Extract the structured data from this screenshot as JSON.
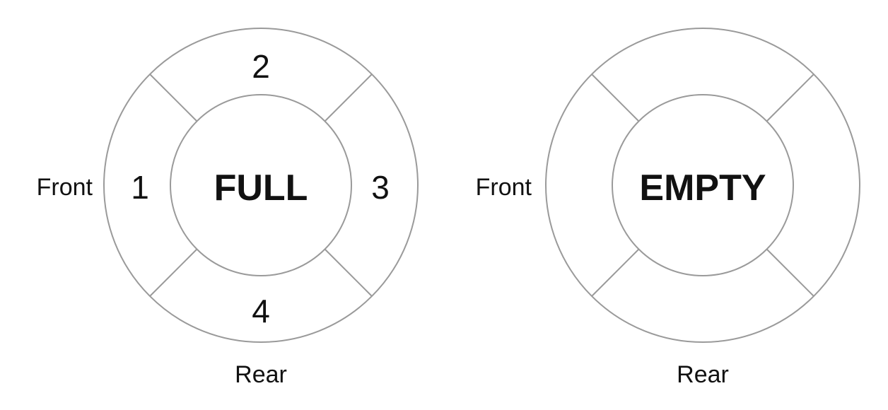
{
  "queues": [
    {
      "state_label": "FULL",
      "front_label": "Front",
      "rear_label": "Rear",
      "slots": [
        "1",
        "2",
        "3",
        "4"
      ]
    },
    {
      "state_label": "EMPTY",
      "front_label": "Front",
      "rear_label": "Rear",
      "slots": [
        "",
        "",
        "",
        ""
      ]
    }
  ],
  "colors": {
    "stroke": "#9a9a9a",
    "text": "#111111"
  }
}
